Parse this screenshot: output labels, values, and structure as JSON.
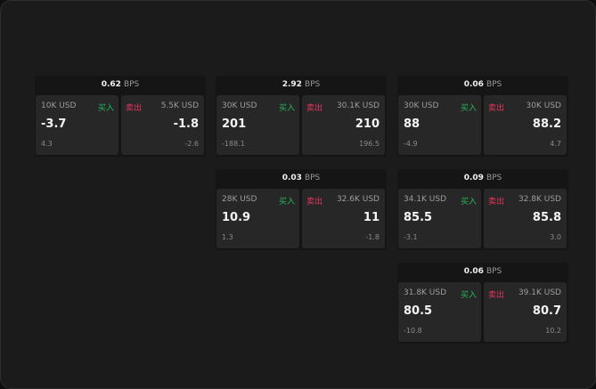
{
  "cards": [
    {
      "spread": "0.62",
      "unit": "BPS",
      "buy": {
        "size": "10K USD",
        "label": "买入",
        "price": "-3.7",
        "change": "4.3"
      },
      "sell": {
        "size": "5.5K USD",
        "label": "卖出",
        "price": "-1.8",
        "change": "-2.6"
      }
    },
    {
      "spread": "2.92",
      "unit": "BPS",
      "buy": {
        "size": "30K USD",
        "label": "买入",
        "price": "201",
        "change": "-188.1"
      },
      "sell": {
        "size": "30.1K USD",
        "label": "卖出",
        "price": "210",
        "change": "196.5"
      }
    },
    {
      "spread": "0.06",
      "unit": "BPS",
      "buy": {
        "size": "30K USD",
        "label": "买入",
        "price": "88",
        "change": "-4.9"
      },
      "sell": {
        "size": "30K USD",
        "label": "卖出",
        "price": "88.2",
        "change": "4.7"
      }
    },
    {
      "spread": "0.03",
      "unit": "BPS",
      "buy": {
        "size": "28K USD",
        "label": "买入",
        "price": "10.9",
        "change": "1.3"
      },
      "sell": {
        "size": "32.6K USD",
        "label": "卖出",
        "price": "11",
        "change": "-1.8"
      }
    },
    {
      "spread": "0.09",
      "unit": "BPS",
      "buy": {
        "size": "34.1K USD",
        "label": "买入",
        "price": "85.5",
        "change": "-3.1"
      },
      "sell": {
        "size": "32.8K USD",
        "label": "卖出",
        "price": "85.8",
        "change": "3.0"
      }
    },
    {
      "spread": "0.06",
      "unit": "BPS",
      "buy": {
        "size": "31.8K USD",
        "label": "买入",
        "price": "80.5",
        "change": "-10.8"
      },
      "sell": {
        "size": "39.1K USD",
        "label": "卖出",
        "price": "80.7",
        "change": "10.2"
      }
    }
  ]
}
